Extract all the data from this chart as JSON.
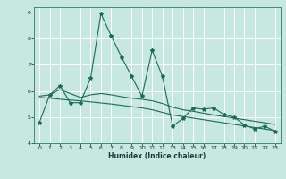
{
  "xlabel": "Humidex (Indice chaleur)",
  "background_color": "#c6e8e0",
  "grid_color": "#ffffff",
  "line_color": "#1a6b5a",
  "xlim": [
    -0.5,
    23.5
  ],
  "ylim": [
    4,
    9.2
  ],
  "yticks": [
    4,
    5,
    6,
    7,
    8,
    9
  ],
  "xticks": [
    0,
    1,
    2,
    3,
    4,
    5,
    6,
    7,
    8,
    9,
    10,
    11,
    12,
    13,
    14,
    15,
    16,
    17,
    18,
    19,
    20,
    21,
    22,
    23
  ],
  "x": [
    0,
    1,
    2,
    3,
    4,
    5,
    6,
    7,
    8,
    9,
    10,
    11,
    12,
    13,
    14,
    15,
    16,
    17,
    18,
    19,
    20,
    21,
    22,
    23
  ],
  "series1": [
    4.8,
    5.85,
    6.2,
    5.55,
    5.55,
    6.5,
    8.95,
    8.1,
    7.3,
    6.55,
    5.8,
    7.55,
    6.55,
    4.65,
    4.95,
    5.35,
    5.3,
    5.35,
    5.1,
    5.0,
    4.7,
    4.55,
    4.65,
    4.45
  ],
  "series2": [
    5.8,
    5.85,
    6.05,
    5.9,
    5.75,
    5.85,
    5.9,
    5.85,
    5.78,
    5.72,
    5.68,
    5.62,
    5.52,
    5.38,
    5.28,
    5.22,
    5.15,
    5.08,
    5.02,
    4.96,
    4.9,
    4.84,
    4.78,
    4.72
  ],
  "series3": [
    5.75,
    5.72,
    5.68,
    5.65,
    5.62,
    5.58,
    5.54,
    5.5,
    5.45,
    5.4,
    5.35,
    5.28,
    5.18,
    5.08,
    5.02,
    4.96,
    4.9,
    4.84,
    4.78,
    4.72,
    4.66,
    4.6,
    4.54,
    4.48
  ]
}
